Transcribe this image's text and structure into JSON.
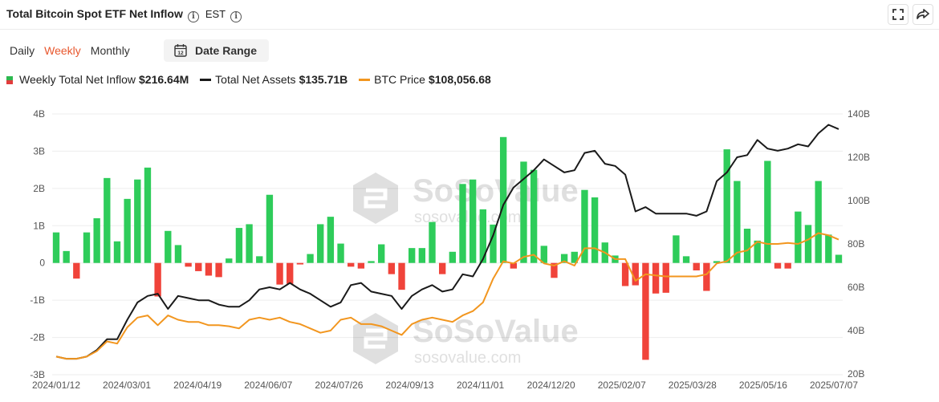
{
  "header": {
    "title": "Total Bitcoin Spot ETF Net Inflow",
    "info_glyph": "i",
    "timezone": "EST",
    "fullscreen_icon": "fullscreen-icon",
    "share_icon": "share-icon"
  },
  "tabs": [
    {
      "label": "Daily",
      "active": false
    },
    {
      "label": "Weekly",
      "active": true
    },
    {
      "label": "Monthly",
      "active": false
    }
  ],
  "date_range": {
    "label": "Date Range",
    "icon_text": "12"
  },
  "legend": {
    "inflow": {
      "label": "Weekly Total Net Inflow",
      "value": "$216.64M"
    },
    "assets": {
      "label": "Total Net Assets",
      "value": "$135.71B"
    },
    "price": {
      "label": "BTC Price",
      "value": "$108,056.68"
    }
  },
  "watermark": {
    "brand": "SoSoValue",
    "url": "sosovalue.com"
  },
  "colors": {
    "positive": "#2ecc5a",
    "negative": "#f0433a",
    "assets": "#1a1a1a",
    "price": "#f2961f",
    "grid": "#ededed"
  },
  "chart_data": {
    "type": "bar",
    "x_tick_labels": [
      "2024/01/12",
      "2024/03/01",
      "2024/04/19",
      "2024/06/07",
      "2024/07/26",
      "2024/09/13",
      "2024/11/01",
      "2024/12/20",
      "2025/02/07",
      "2025/03/28",
      "2025/05/16",
      "2025/07/07"
    ],
    "y_left": {
      "ticks": [
        "4B",
        "3B",
        "2B",
        "1B",
        "0",
        "-1B",
        "-2B",
        "-3B"
      ],
      "range": [
        -3,
        4
      ],
      "unit": "B"
    },
    "y_right": {
      "ticks": [
        "140B",
        "120B",
        "100B",
        "80B",
        "60B",
        "40B",
        "20B"
      ],
      "range": [
        20,
        140
      ],
      "unit": "B"
    },
    "series": [
      {
        "name": "Weekly Total Net Inflow",
        "type": "bar",
        "values": [
          0.82,
          0.32,
          -0.42,
          0.82,
          1.2,
          2.28,
          0.58,
          1.72,
          2.24,
          2.56,
          -0.9,
          0.86,
          0.48,
          -0.1,
          -0.22,
          -0.34,
          -0.38,
          0.12,
          0.94,
          1.04,
          0.18,
          1.83,
          -0.58,
          -0.56,
          -0.04,
          0.24,
          1.04,
          1.24,
          0.52,
          -0.1,
          -0.15,
          0.05,
          0.5,
          -0.3,
          -0.72,
          0.4,
          0.4,
          1.1,
          -0.3,
          0.3,
          2.12,
          2.24,
          1.44,
          1.03,
          3.38,
          -0.15,
          2.72,
          2.5,
          0.46,
          -0.4,
          0.24,
          0.3,
          1.96,
          1.76,
          0.55,
          0.2,
          -0.62,
          -0.6,
          -2.6,
          -0.82,
          -0.8,
          0.74,
          0.18,
          -0.2,
          -0.75,
          0.05,
          3.05,
          2.2,
          0.92,
          0.6,
          2.74,
          -0.15,
          -0.15,
          1.38,
          1.02,
          2.2,
          0.76,
          0.22
        ]
      },
      {
        "name": "Total Net Assets",
        "type": "line",
        "values": [
          28,
          27,
          27,
          28,
          31,
          36,
          36,
          45,
          53,
          56,
          57,
          50,
          56,
          55,
          54,
          54,
          52,
          51,
          51,
          54,
          59,
          60,
          59,
          62,
          59,
          57,
          54,
          51,
          53,
          61,
          62,
          58,
          57,
          56,
          50,
          56,
          59,
          61,
          58,
          59,
          66,
          65,
          73,
          84,
          98,
          106,
          110,
          114,
          119,
          116,
          113,
          114,
          122,
          123,
          117,
          116,
          112,
          95,
          97,
          94,
          94,
          94,
          94,
          93,
          95,
          109,
          113,
          120,
          121,
          128,
          124,
          123,
          124,
          126,
          125,
          131,
          135,
          133
        ]
      },
      {
        "name": "BTC Price",
        "type": "line",
        "values": [
          43000,
          42000,
          42000,
          43000,
          45500,
          50000,
          49000,
          56500,
          61000,
          62000,
          57500,
          62000,
          60000,
          59000,
          59000,
          57500,
          57500,
          57000,
          56000,
          60000,
          61000,
          60000,
          61000,
          59000,
          58000,
          56000,
          54000,
          55000,
          60000,
          61000,
          58000,
          58000,
          57000,
          55000,
          53000,
          58000,
          60000,
          61000,
          60000,
          59000,
          62000,
          64000,
          68000,
          79000,
          87000,
          86000,
          89000,
          90000,
          86000,
          85000,
          87000,
          85000,
          93000,
          93000,
          91000,
          88000,
          88000,
          78000,
          81000,
          80500,
          80000,
          80000,
          80000,
          80000,
          81000,
          86000,
          87000,
          91000,
          92000,
          96000,
          95000,
          95000,
          95500,
          95000,
          97000,
          100000,
          99000,
          97000
        ]
      }
    ]
  }
}
